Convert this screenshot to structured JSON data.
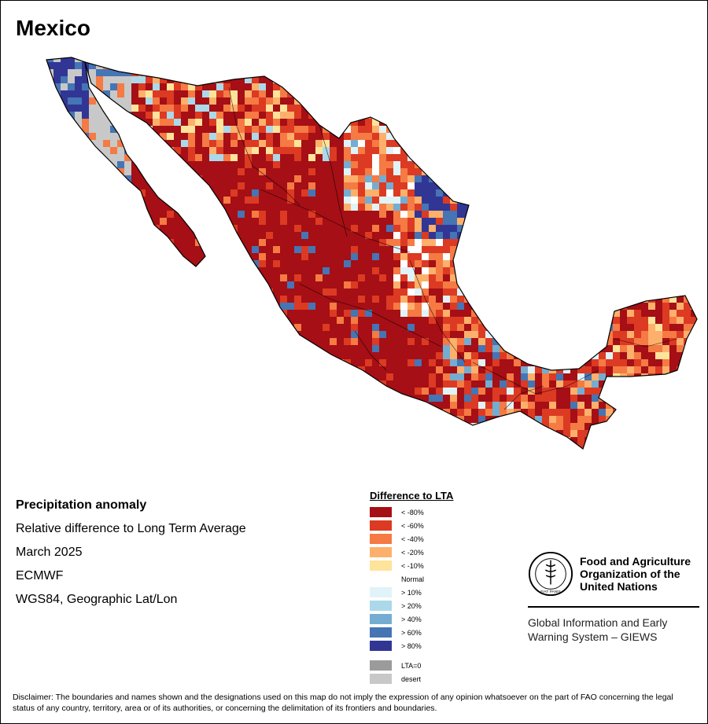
{
  "map": {
    "title": "Mexico",
    "info_lines": [
      "Precipitation anomaly",
      "Relative difference to Long Term Average",
      "March 2025",
      "ECMWF",
      "WGS84, Geographic Lat/Lon"
    ],
    "legend": {
      "title": "Difference to LTA",
      "classes": [
        {
          "label": "< -80%",
          "color": "#a50f15"
        },
        {
          "label": "< -60%",
          "color": "#dc3a23"
        },
        {
          "label": "< -40%",
          "color": "#f57a43"
        },
        {
          "label": "< -20%",
          "color": "#fdb06b"
        },
        {
          "label": "< -10%",
          "color": "#fee49a"
        },
        {
          "label": "Normal",
          "color": "#ffffff"
        },
        {
          "label": "> 10%",
          "color": "#e0f3f8"
        },
        {
          "label": "> 20%",
          "color": "#abd9e9"
        },
        {
          "label": "> 40%",
          "color": "#74add1"
        },
        {
          "label": "> 60%",
          "color": "#4575b4"
        },
        {
          "label": "> 80%",
          "color": "#313695"
        }
      ],
      "extra": [
        {
          "label": "LTA=0",
          "color": "#9b9b9b"
        },
        {
          "label": "desert",
          "color": "#c8c8c8"
        }
      ]
    },
    "organization": {
      "logo_text": "FAO",
      "logo_ring_text": "FIAT PANIS",
      "name_lines": [
        "Food and Agriculture",
        "Organization of the",
        "United Nations"
      ],
      "subtitle_lines": [
        "Global Information and Early",
        "Warning System – GIEWS"
      ]
    },
    "disclaimer": "Disclaimer: The boundaries and names shown and the designations used on this map do not imply the expression of any opinion whatsoever on the part of FAO concerning the legal status of any country, territory, area or of its authorities, or concerning the delimitation of its frontiers and boundaries."
  }
}
